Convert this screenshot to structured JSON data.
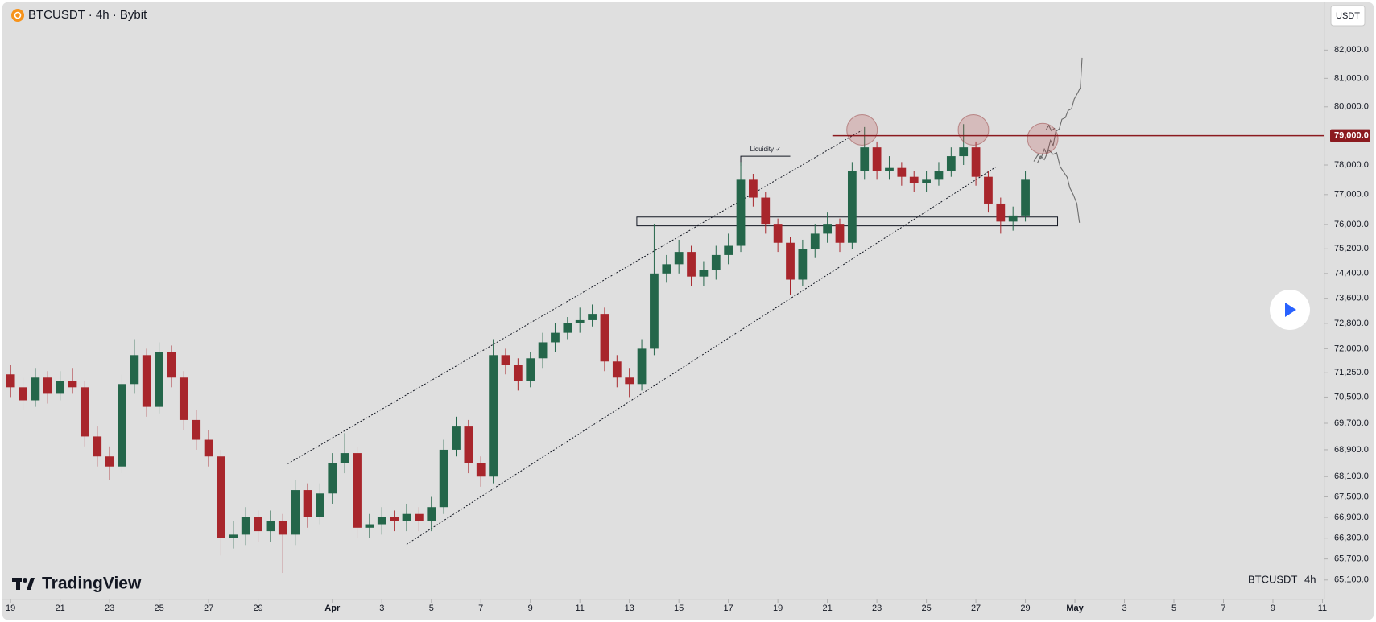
{
  "chart_data": {
    "type": "candlestick",
    "title": "BTCUSDT · 4h · Bybit",
    "currency": "USDT",
    "symbol": "BTCUSDT",
    "interval": "4h",
    "brand": "TradingView",
    "log_scale": true,
    "up_color": "#24664a",
    "down_color": "#a8262c",
    "x": [
      0,
      0.5,
      1,
      1.5,
      2,
      2.5,
      3,
      3.5,
      4,
      4.5,
      5,
      5.5,
      6,
      6.5,
      7,
      7.5,
      8,
      8.5,
      9,
      9.5,
      10,
      10.5,
      11,
      11.5,
      12,
      12.5,
      13,
      13.5,
      14,
      14.5,
      15,
      15.5,
      16,
      16.5,
      17,
      17.5,
      18,
      18.5,
      19,
      19.5,
      20,
      20.5,
      21,
      21.5,
      22,
      22.5,
      23,
      23.5,
      24,
      24.5,
      25,
      25.5,
      26,
      26.5,
      27,
      27.5,
      28,
      28.5,
      29,
      29.5,
      30,
      30.5,
      31,
      31.5,
      32,
      32.5,
      33,
      33.5,
      34,
      34.5,
      35,
      35.5,
      36,
      36.5,
      37,
      37.5,
      38,
      38.5,
      39,
      39.5,
      40,
      40.5,
      41
    ],
    "open": [
      71200,
      70800,
      70400,
      71100,
      70600,
      71000,
      70800,
      69300,
      68700,
      68400,
      70900,
      71800,
      70200,
      71900,
      71100,
      69800,
      69200,
      68700,
      66300,
      66400,
      66900,
      66500,
      66800,
      66400,
      67700,
      66900,
      67600,
      68500,
      68800,
      66600,
      66700,
      66900,
      66800,
      67000,
      66800,
      67200,
      68900,
      69600,
      68500,
      68100,
      71800,
      71500,
      71000,
      71700,
      72200,
      72500,
      72800,
      72900,
      73100,
      71600,
      71100,
      70900,
      72000,
      74400,
      74700,
      75100,
      74300,
      74500,
      75000,
      75300,
      77500,
      76900,
      76000,
      75400,
      74200,
      75200,
      75700,
      76000,
      75400,
      77800,
      78600,
      77800,
      77900,
      77600,
      77400,
      77500,
      77800,
      78300,
      78600,
      77600,
      76700,
      76100,
      76300
    ],
    "high": [
      71500,
      71100,
      71400,
      71300,
      71300,
      71400,
      71000,
      69600,
      69000,
      71200,
      72300,
      72000,
      72200,
      72100,
      71300,
      70100,
      69500,
      68900,
      66800,
      67200,
      67100,
      67100,
      67000,
      68000,
      67900,
      67900,
      68800,
      69400,
      69000,
      67000,
      67200,
      67100,
      67300,
      67200,
      67500,
      69200,
      69900,
      69800,
      68700,
      72300,
      72000,
      71700,
      71900,
      72500,
      72800,
      73000,
      73300,
      73400,
      73300,
      71800,
      71400,
      72300,
      76000,
      75000,
      75500,
      75300,
      74800,
      75300,
      75700,
      78100,
      77700,
      77100,
      76200,
      75600,
      75500,
      76000,
      76400,
      76200,
      78100,
      79300,
      78800,
      78300,
      78100,
      77800,
      77800,
      78100,
      78600,
      79400,
      78800,
      77800,
      76900,
      76600,
      77800
    ],
    "low": [
      70500,
      70100,
      70200,
      70300,
      70400,
      70600,
      69000,
      68400,
      68000,
      68200,
      70600,
      69900,
      70000,
      70800,
      69500,
      68900,
      68400,
      65800,
      66000,
      66100,
      66200,
      66200,
      65300,
      66100,
      66600,
      66700,
      67300,
      68200,
      66300,
      66300,
      66400,
      66500,
      66500,
      66500,
      66500,
      67000,
      68700,
      68200,
      67800,
      67900,
      71200,
      70700,
      70800,
      71400,
      71900,
      72300,
      72500,
      72700,
      71300,
      70800,
      70500,
      70700,
      71800,
      74100,
      74400,
      74000,
      74000,
      74200,
      74700,
      75100,
      76600,
      75700,
      75100,
      73700,
      74000,
      74900,
      75400,
      75100,
      75200,
      77500,
      77500,
      77500,
      77300,
      77100,
      77100,
      77300,
      77600,
      78000,
      77300,
      76400,
      75700,
      75800,
      76100
    ],
    "close": [
      70800,
      70400,
      71100,
      70600,
      71000,
      70800,
      69300,
      68700,
      68400,
      70900,
      71800,
      70200,
      71900,
      71100,
      69800,
      69200,
      68700,
      66300,
      66400,
      66900,
      66500,
      66800,
      66400,
      67700,
      66900,
      67600,
      68500,
      68800,
      66600,
      66700,
      66900,
      66800,
      67000,
      66800,
      67200,
      68900,
      69600,
      68500,
      68100,
      71800,
      71500,
      71000,
      71700,
      72200,
      72500,
      72800,
      72900,
      73100,
      71600,
      71100,
      70900,
      72000,
      74400,
      74700,
      75100,
      74300,
      74500,
      75000,
      75300,
      77500,
      76900,
      76000,
      75400,
      74200,
      75200,
      75700,
      76000,
      75400,
      77800,
      78600,
      77800,
      77900,
      77600,
      77400,
      77500,
      77800,
      78300,
      78600,
      77600,
      76700,
      76100,
      76300,
      77500
    ],
    "xlim": [
      -0.33,
      53.05
    ],
    "xticks": [
      {
        "value": 0,
        "label": "19"
      },
      {
        "value": 2,
        "label": "21"
      },
      {
        "value": 4,
        "label": "23"
      },
      {
        "value": 6,
        "label": "25"
      },
      {
        "value": 8,
        "label": "27"
      },
      {
        "value": 10,
        "label": "29"
      },
      {
        "value": 13,
        "label": "Apr"
      },
      {
        "value": 15,
        "label": "3"
      },
      {
        "value": 17,
        "label": "5"
      },
      {
        "value": 19,
        "label": "7"
      },
      {
        "value": 21,
        "label": "9"
      },
      {
        "value": 23,
        "label": "11"
      },
      {
        "value": 25,
        "label": "13"
      },
      {
        "value": 27,
        "label": "15"
      },
      {
        "value": 29,
        "label": "17"
      },
      {
        "value": 31,
        "label": "19"
      },
      {
        "value": 33,
        "label": "21"
      },
      {
        "value": 35,
        "label": "23"
      },
      {
        "value": 37,
        "label": "25"
      },
      {
        "value": 39,
        "label": "27"
      },
      {
        "value": 41,
        "label": "29"
      },
      {
        "value": 43,
        "label": "May"
      },
      {
        "value": 45,
        "label": "3"
      },
      {
        "value": 47,
        "label": "5"
      },
      {
        "value": 49,
        "label": "7"
      },
      {
        "value": 51,
        "label": "9"
      },
      {
        "value": 53,
        "label": "11"
      }
    ],
    "ylim": [
      64550,
      83650
    ],
    "yticks": [
      {
        "value": 82000,
        "label": "82,000.0"
      },
      {
        "value": 81000,
        "label": "81,000.0"
      },
      {
        "value": 80000,
        "label": "80,000.0"
      },
      {
        "value": 78000,
        "label": "78,000.0"
      },
      {
        "value": 77000,
        "label": "77,000.0"
      },
      {
        "value": 76000,
        "label": "76,000.0"
      },
      {
        "value": 75200,
        "label": "75,200.0"
      },
      {
        "value": 74400,
        "label": "74,400.0"
      },
      {
        "value": 73600,
        "label": "73,600.0"
      },
      {
        "value": 72800,
        "label": "72,800.0"
      },
      {
        "value": 72000,
        "label": "72,000.0"
      },
      {
        "value": 71250,
        "label": "71,250.0"
      },
      {
        "value": 70500,
        "label": "70,500.0"
      },
      {
        "value": 69700,
        "label": "69,700.0"
      },
      {
        "value": 68900,
        "label": "68,900.0"
      },
      {
        "value": 68100,
        "label": "68,100.0"
      },
      {
        "value": 67500,
        "label": "67,500.0"
      },
      {
        "value": 66900,
        "label": "66,900.0"
      },
      {
        "value": 66300,
        "label": "66,300.0"
      },
      {
        "value": 65700,
        "label": "65,700.0"
      },
      {
        "value": 65100,
        "label": "65,100.0"
      }
    ],
    "hline": {
      "value": 79000,
      "label": "79,000.0",
      "color": "#8b1a1f"
    },
    "channel_upper": {
      "x": [
        11.2,
        34.4
      ],
      "y": [
        68480,
        79190
      ]
    },
    "channel_lower": {
      "x": [
        16,
        39.8
      ],
      "y": [
        66120,
        77930
      ]
    },
    "zone": {
      "x": [
        25.3,
        42.3
      ],
      "y": [
        75960,
        76250
      ]
    },
    "circles": {
      "x": [
        34.4,
        38.9,
        41.7
      ],
      "y": [
        79200,
        79200,
        78900
      ]
    },
    "liquidity": {
      "text": "Liquidity ✓",
      "x": [
        29.5,
        31.5
      ],
      "y": 78300
    }
  }
}
